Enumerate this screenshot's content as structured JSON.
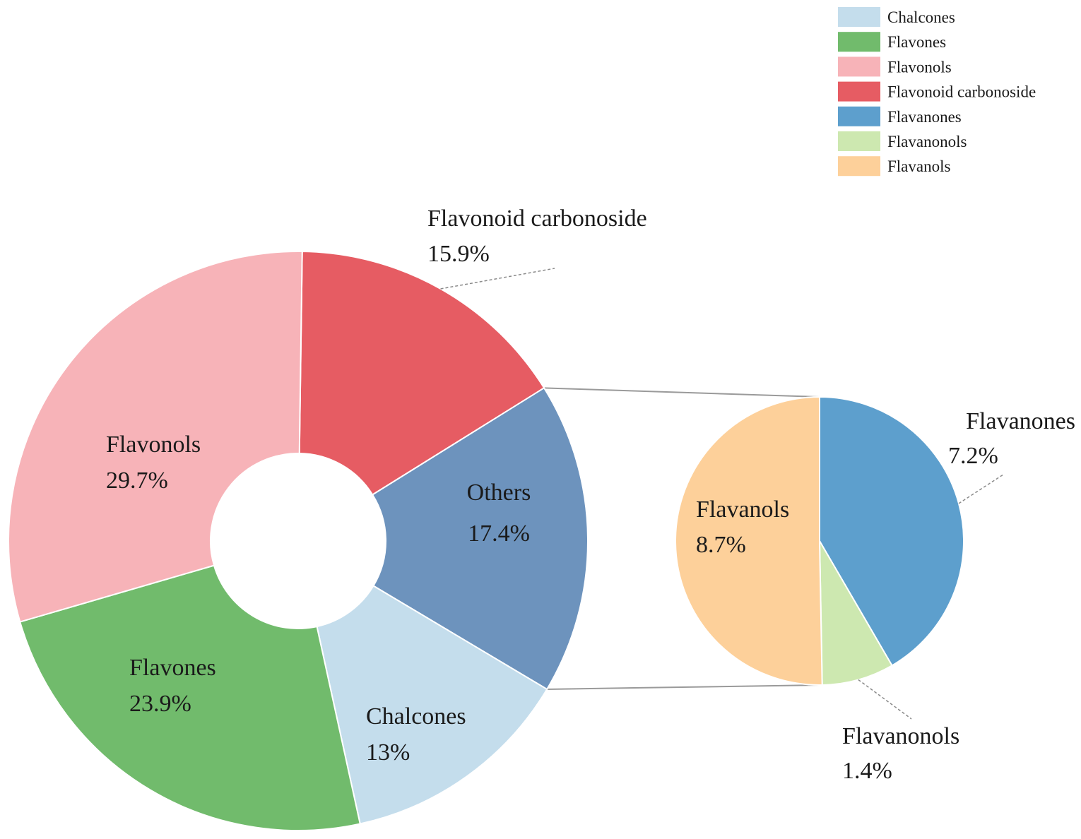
{
  "chart_data": [
    {
      "type": "pie",
      "donut": true,
      "slices": [
        {
          "label": "Flavonoid carbonoside",
          "value": 15.9,
          "value_label": "15.9%",
          "color": "#e65c63"
        },
        {
          "label": "Others",
          "value": 17.4,
          "value_label": "17.4%",
          "color": "#6d93bd"
        },
        {
          "label": "Chalcones",
          "value": 13,
          "value_label": "13%",
          "color": "#c4ddec"
        },
        {
          "label": "Flavones",
          "value": 23.9,
          "value_label": "23.9%",
          "color": "#71bb6c"
        },
        {
          "label": "Flavonols",
          "value": 29.7,
          "value_label": "29.7%",
          "color": "#f7b3b8"
        }
      ]
    },
    {
      "type": "pie",
      "breakdown_of": "Others",
      "slices": [
        {
          "label": "Flavanones",
          "value": 7.2,
          "value_label": "7.2%",
          "color": "#5d9fcd"
        },
        {
          "label": "Flavanonols",
          "value": 1.4,
          "value_label": "1.4%",
          "color": "#cde8b0"
        },
        {
          "label": "Flavanols",
          "value": 8.7,
          "value_label": "8.7%",
          "color": "#fdd09a"
        }
      ]
    }
  ],
  "legend": {
    "placement": "top-right",
    "items": [
      {
        "label": "Chalcones",
        "color": "#c4ddec"
      },
      {
        "label": "Flavones",
        "color": "#71bb6c"
      },
      {
        "label": "Flavonols",
        "color": "#f7b3b8"
      },
      {
        "label": "Flavonoid carbonoside",
        "color": "#e65c63"
      },
      {
        "label": "Flavanones",
        "color": "#5d9fcd"
      },
      {
        "label": "Flavanonols",
        "color": "#cde8b0"
      },
      {
        "label": "Flavanols",
        "color": "#fdd09a"
      }
    ]
  }
}
